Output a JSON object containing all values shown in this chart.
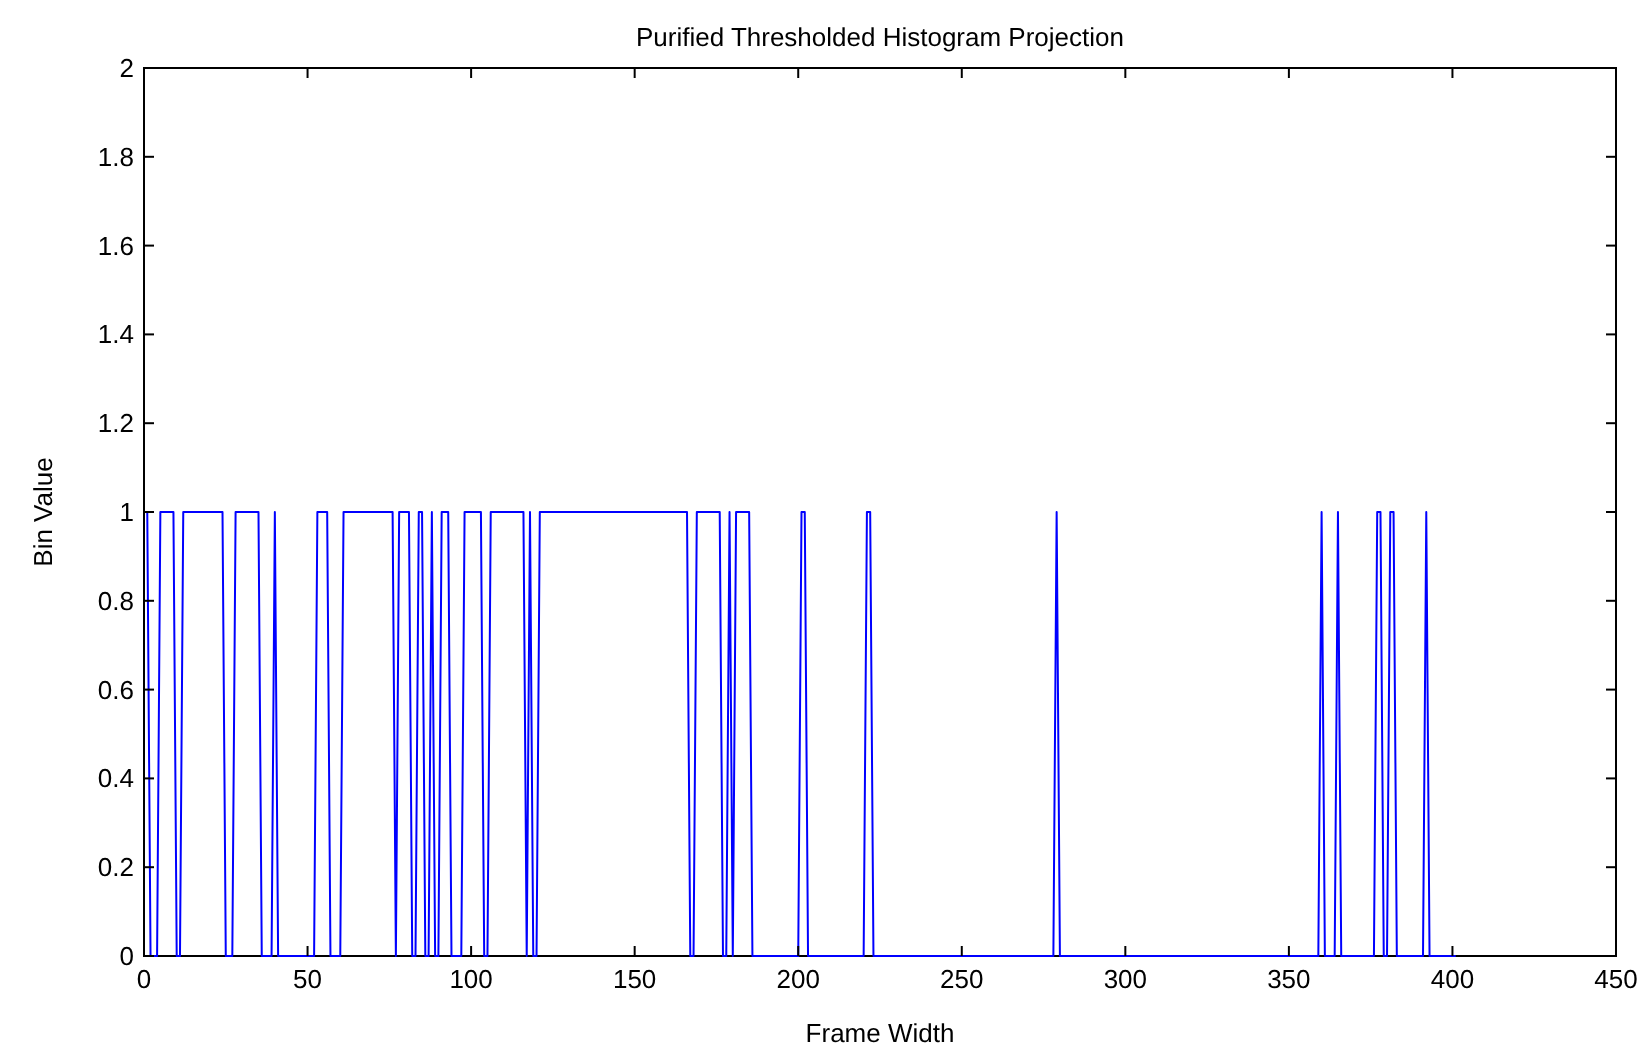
{
  "chart_data": {
    "type": "line",
    "title": "Purified Thresholded Histogram Projection",
    "xlabel": "Frame Width",
    "ylabel": "Bin Value",
    "x": [
      0,
      1,
      2,
      4,
      5,
      9,
      10,
      11,
      12,
      24,
      25,
      27,
      28,
      35,
      36,
      39,
      40,
      41,
      52,
      53,
      56,
      57,
      60,
      61,
      76,
      77,
      78,
      81,
      82,
      83,
      84,
      85,
      86,
      87,
      88,
      89,
      90,
      91,
      93,
      94,
      97,
      98,
      103,
      104,
      105,
      106,
      116,
      117,
      118,
      119,
      120,
      121,
      166,
      167,
      168,
      169,
      176,
      177,
      178,
      179,
      180,
      181,
      185,
      186,
      200,
      201,
      202,
      203,
      220,
      221,
      222,
      223,
      278,
      279,
      280,
      359,
      360,
      361,
      364,
      365,
      366,
      376,
      377,
      378,
      379,
      380,
      381,
      382,
      383,
      391,
      392,
      393,
      401
    ],
    "series": [
      {
        "color": "#0000ff",
        "values": [
          1,
          1,
          0,
          0,
          1,
          1,
          0,
          0,
          1,
          1,
          0,
          0,
          1,
          1,
          0,
          0,
          1,
          0,
          0,
          1,
          1,
          0,
          0,
          1,
          1,
          0,
          1,
          1,
          0,
          0,
          1,
          1,
          0,
          0,
          1,
          0,
          0,
          1,
          1,
          0,
          0,
          1,
          1,
          0,
          0,
          1,
          1,
          0,
          1,
          0,
          0,
          1,
          1,
          0,
          0,
          1,
          1,
          0,
          0,
          1,
          0,
          1,
          1,
          0,
          0,
          1,
          1,
          0,
          0,
          1,
          1,
          0,
          0,
          1,
          0,
          0,
          1,
          0,
          0,
          1,
          0,
          0,
          1,
          1,
          0,
          0,
          1,
          1,
          0,
          0,
          1,
          0,
          0
        ]
      }
    ],
    "xlim": [
      0,
      450
    ],
    "xticks": [
      0,
      50,
      100,
      150,
      200,
      250,
      300,
      350,
      400,
      450
    ],
    "ylim": [
      0,
      2
    ],
    "yticks": [
      0,
      0.2,
      0.4,
      0.6,
      0.8,
      1,
      1.2,
      1.4,
      1.6,
      1.8,
      2
    ],
    "grid": false,
    "marker": "none",
    "line_style": "solid"
  }
}
